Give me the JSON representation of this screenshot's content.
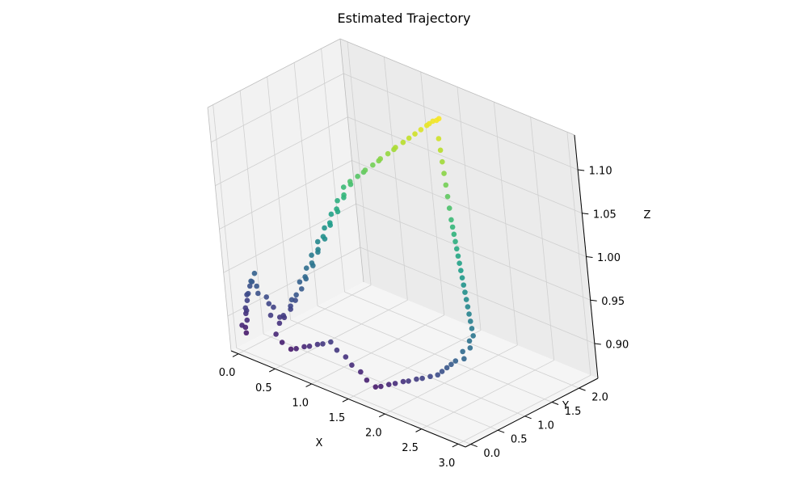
{
  "chart_data": {
    "type": "scatter",
    "title": "Estimated Trajectory",
    "xlabel": "X",
    "ylabel": "Y",
    "zlabel": "Z",
    "xlim": [
      -0.1,
      3.1
    ],
    "ylim": [
      -0.1,
      2.35
    ],
    "zlim": [
      0.86,
      1.14
    ],
    "xticks": [
      "0.0",
      "0.5",
      "1.0",
      "1.5",
      "2.0",
      "2.5",
      "3.0"
    ],
    "yticks": [
      "0.0",
      "0.5",
      "1.0",
      "1.5",
      "2.0"
    ],
    "zticks": [
      "0.90",
      "0.95",
      "1.00",
      "1.05",
      "1.10"
    ],
    "colormap": "viridis",
    "colormap_stops": [
      "#440154",
      "#482878",
      "#3e4989",
      "#31688e",
      "#26828e",
      "#1f9e89",
      "#35b779",
      "#6ece58",
      "#b5de2b",
      "#fde725"
    ],
    "pane_color": "#f2f2f2",
    "grid_color": "#d0d0d0",
    "grid": true,
    "colorbar": false,
    "legend": false,
    "points": [
      [
        0.02,
        0.05,
        0.88
      ],
      [
        0.0,
        0.07,
        0.885
      ],
      [
        0.01,
        0.0,
        0.89
      ],
      [
        0.04,
        0.06,
        0.895
      ],
      [
        0.0,
        0.1,
        0.9
      ],
      [
        0.03,
        0.08,
        0.905
      ],
      [
        0.05,
        0.04,
        0.91
      ],
      [
        0.02,
        0.12,
        0.915
      ],
      [
        0.0,
        0.15,
        0.92
      ],
      [
        0.06,
        0.1,
        0.925
      ],
      [
        0.03,
        0.18,
        0.93
      ],
      [
        0.05,
        0.2,
        0.935
      ],
      [
        0.1,
        0.12,
        0.94
      ],
      [
        0.08,
        0.22,
        0.945
      ],
      [
        0.15,
        0.15,
        0.935
      ],
      [
        0.2,
        0.1,
        0.93
      ],
      [
        0.25,
        0.18,
        0.925
      ],
      [
        0.3,
        0.15,
        0.92
      ],
      [
        0.32,
        0.2,
        0.915
      ],
      [
        0.35,
        0.1,
        0.91
      ],
      [
        0.38,
        0.22,
        0.905
      ],
      [
        0.4,
        0.18,
        0.9
      ],
      [
        0.42,
        0.25,
        0.905
      ],
      [
        0.45,
        0.2,
        0.91
      ],
      [
        0.48,
        0.3,
        0.915
      ],
      [
        0.5,
        0.28,
        0.92
      ],
      [
        0.52,
        0.35,
        0.925
      ],
      [
        0.55,
        0.25,
        0.93
      ],
      [
        0.58,
        0.3,
        0.935
      ],
      [
        0.6,
        0.38,
        0.94
      ],
      [
        0.55,
        0.42,
        0.945
      ],
      [
        0.62,
        0.45,
        0.95
      ],
      [
        0.65,
        0.4,
        0.955
      ],
      [
        0.6,
        0.5,
        0.96
      ],
      [
        0.68,
        0.52,
        0.965
      ],
      [
        0.7,
        0.48,
        0.97
      ],
      [
        0.65,
        0.55,
        0.975
      ],
      [
        0.72,
        0.58,
        0.98
      ],
      [
        0.75,
        0.55,
        0.985
      ],
      [
        0.7,
        0.62,
        0.99
      ],
      [
        0.78,
        0.65,
        0.995
      ],
      [
        0.8,
        0.6,
        1.0
      ],
      [
        0.75,
        0.7,
        1.005
      ],
      [
        0.82,
        0.72,
        1.01
      ],
      [
        0.85,
        0.68,
        1.015
      ],
      [
        0.8,
        0.78,
        1.02
      ],
      [
        0.88,
        0.8,
        1.025
      ],
      [
        0.9,
        0.76,
        1.03
      ],
      [
        0.85,
        0.85,
        1.035
      ],
      [
        0.92,
        0.88,
        1.04
      ],
      [
        0.95,
        0.85,
        1.045
      ],
      [
        0.9,
        0.92,
        1.05
      ],
      [
        0.98,
        0.95,
        1.055
      ],
      [
        1.0,
        0.92,
        1.06
      ],
      [
        1.05,
        1.0,
        1.065
      ],
      [
        1.1,
        1.05,
        1.07
      ],
      [
        1.15,
        1.02,
        1.075
      ],
      [
        1.2,
        1.1,
        1.08
      ],
      [
        1.25,
        1.15,
        1.085
      ],
      [
        1.3,
        1.12,
        1.09
      ],
      [
        1.35,
        1.2,
        1.095
      ],
      [
        1.4,
        1.25,
        1.1
      ],
      [
        1.45,
        1.22,
        1.105
      ],
      [
        1.5,
        1.3,
        1.11
      ],
      [
        1.55,
        1.35,
        1.115
      ],
      [
        1.6,
        1.4,
        1.12
      ],
      [
        1.65,
        1.45,
        1.125
      ],
      [
        1.7,
        1.5,
        1.13
      ],
      [
        1.75,
        1.55,
        1.135
      ],
      [
        1.8,
        1.6,
        1.138
      ],
      [
        1.72,
        1.52,
        1.132
      ],
      [
        1.78,
        1.58,
        1.136
      ],
      [
        1.85,
        1.5,
        1.12
      ],
      [
        1.9,
        1.45,
        1.11
      ],
      [
        1.95,
        1.4,
        1.1
      ],
      [
        2.0,
        1.35,
        1.09
      ],
      [
        2.05,
        1.3,
        1.08
      ],
      [
        2.1,
        1.25,
        1.07
      ],
      [
        2.15,
        1.2,
        1.06
      ],
      [
        2.2,
        1.15,
        1.05
      ],
      [
        2.25,
        1.1,
        1.045
      ],
      [
        2.3,
        1.05,
        1.04
      ],
      [
        2.35,
        1.0,
        1.035
      ],
      [
        2.4,
        0.95,
        1.03
      ],
      [
        2.45,
        0.9,
        1.025
      ],
      [
        2.5,
        0.85,
        1.02
      ],
      [
        2.55,
        0.8,
        1.015
      ],
      [
        2.6,
        0.75,
        1.01
      ],
      [
        2.65,
        0.7,
        1.005
      ],
      [
        2.7,
        0.65,
        1.0
      ],
      [
        2.75,
        0.6,
        0.995
      ],
      [
        2.8,
        0.55,
        0.99
      ],
      [
        2.85,
        0.5,
        0.985
      ],
      [
        2.9,
        0.45,
        0.98
      ],
      [
        2.95,
        0.4,
        0.975
      ],
      [
        3.0,
        0.35,
        0.97
      ],
      [
        2.98,
        0.3,
        0.965
      ],
      [
        3.02,
        0.25,
        0.96
      ],
      [
        2.95,
        0.2,
        0.955
      ],
      [
        3.0,
        0.15,
        0.95
      ],
      [
        2.9,
        0.12,
        0.945
      ],
      [
        2.85,
        0.1,
        0.94
      ],
      [
        2.8,
        0.08,
        0.935
      ],
      [
        2.75,
        0.05,
        0.93
      ],
      [
        2.7,
        0.03,
        0.925
      ],
      [
        2.6,
        0.02,
        0.92
      ],
      [
        2.5,
        0.0,
        0.915
      ],
      [
        2.4,
        0.02,
        0.91
      ],
      [
        2.3,
        0.0,
        0.905
      ],
      [
        2.2,
        0.03,
        0.9
      ],
      [
        2.1,
        0.01,
        0.895
      ],
      [
        2.0,
        0.02,
        0.89
      ],
      [
        1.9,
        0.0,
        0.885
      ],
      [
        1.8,
        0.03,
        0.88
      ],
      [
        1.7,
        0.01,
        0.885
      ],
      [
        1.6,
        0.04,
        0.89
      ],
      [
        1.5,
        0.02,
        0.895
      ],
      [
        1.4,
        0.05,
        0.9
      ],
      [
        1.3,
        0.03,
        0.905
      ],
      [
        1.2,
        0.06,
        0.91
      ],
      [
        1.1,
        0.04,
        0.905
      ],
      [
        1.0,
        0.07,
        0.9
      ],
      [
        0.9,
        0.05,
        0.895
      ],
      [
        0.8,
        0.08,
        0.89
      ],
      [
        0.7,
        0.06,
        0.885
      ],
      [
        0.6,
        0.09,
        0.88
      ],
      [
        0.5,
        0.07,
        0.885
      ],
      [
        0.4,
        0.1,
        0.89
      ]
    ]
  }
}
